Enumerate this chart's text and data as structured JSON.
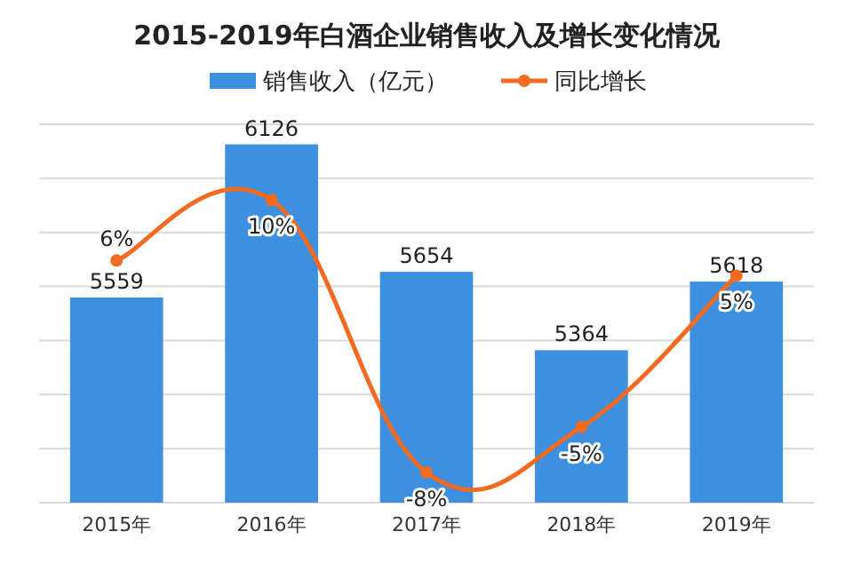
{
  "chart_data": {
    "type": "bar",
    "title": "2015-2019年白酒企业销售收入及增长变化情况",
    "categories": [
      "2015年",
      "2016年",
      "2017年",
      "2018年",
      "2019年"
    ],
    "series": [
      {
        "name": "销售收入（亿元）",
        "color": "#3d8fe0",
        "values": [
          5559,
          6126,
          5654,
          5364,
          5618
        ],
        "value_labels": [
          "5559",
          "6126",
          "5654",
          "5364",
          "5618"
        ]
      },
      {
        "name": "同比增长",
        "type": "line",
        "axis": "y2",
        "color": "#f26b21",
        "marker": "circle",
        "values": [
          6,
          10,
          -8,
          -5,
          5
        ],
        "value_labels": [
          "6%",
          "10%",
          "-8%",
          "-5%",
          "5%"
        ]
      }
    ],
    "ylim": [
      4800,
      6200
    ],
    "yticks": [
      {
        "value": 4800,
        "label": null
      },
      {
        "value": 5000,
        "label": null
      },
      {
        "value": 5200,
        "label": null
      },
      {
        "value": 5400,
        "label": null
      },
      {
        "value": 5600,
        "label": null
      },
      {
        "value": 5800,
        "label": null
      },
      {
        "value": 6000,
        "label": null
      },
      {
        "value": 6200,
        "label": null
      }
    ],
    "y2lim": [
      -10,
      15
    ],
    "tick_labels": "x",
    "grid": "y",
    "legend": "top"
  }
}
